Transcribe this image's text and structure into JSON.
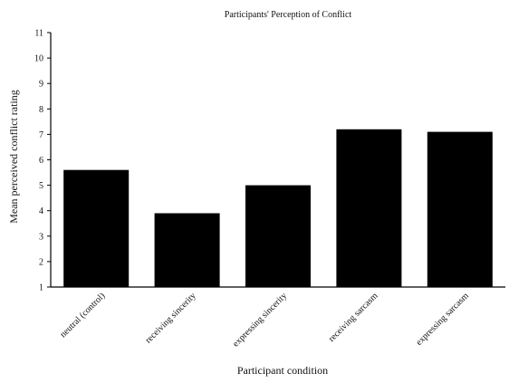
{
  "chart_data": {
    "type": "bar",
    "title": "Participants' Perception of Conflict",
    "xlabel": "Participant condition",
    "ylabel": "Mean perceived conflict rating",
    "categories": [
      "neutral (control)",
      "receiving sincerity",
      "expressing sincerity",
      "receiving sarcasm",
      "expressing sarcasm"
    ],
    "values": [
      5.6,
      3.9,
      5.0,
      7.2,
      7.1
    ],
    "ylim": [
      1,
      11
    ],
    "yticks": [
      "1",
      "2",
      "3",
      "4",
      "5",
      "6",
      "7",
      "8",
      "9",
      "10",
      "11"
    ],
    "grid": false,
    "legend": "none",
    "bar_color": "#000000"
  }
}
